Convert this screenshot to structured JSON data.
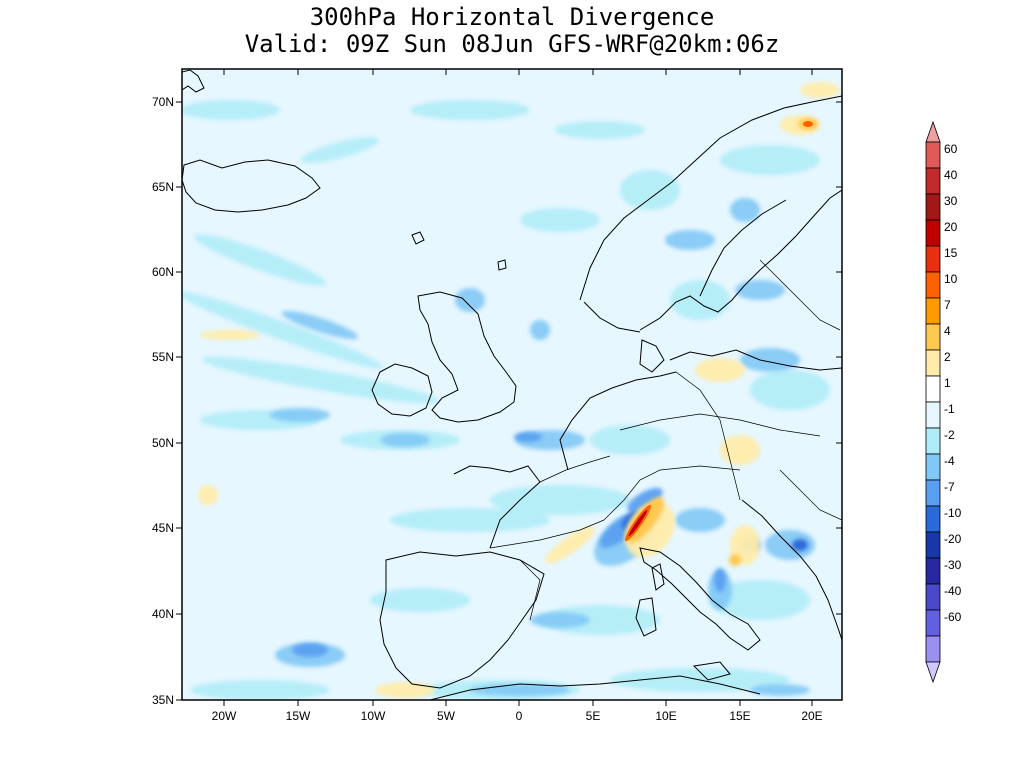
{
  "title": {
    "line1": "300hPa Horizontal Divergence",
    "line2": "Valid: 09Z Sun 08Jun GFS-WRF@20km:06z"
  },
  "map": {
    "lat_labels": [
      "70N",
      "65N",
      "60N",
      "55N",
      "50N",
      "45N",
      "40N",
      "35N"
    ],
    "lon_labels": [
      "20W",
      "15W",
      "10W",
      "5W",
      "0",
      "5E",
      "10E",
      "15E",
      "20E"
    ],
    "background_color": "#e6f7ff"
  },
  "colorbar": {
    "labels": [
      "60",
      "40",
      "30",
      "20",
      "15",
      "10",
      "7",
      "4",
      "2",
      "1",
      "-1",
      "-2",
      "-4",
      "-7",
      "-10",
      "-20",
      "-30",
      "-40",
      "-60"
    ],
    "colors": [
      "#f0a0a0",
      "#e05a5a",
      "#c02a2a",
      "#a01818",
      "#c00000",
      "#e83010",
      "#ff6000",
      "#ff9a00",
      "#ffc850",
      "#ffecaa",
      "#ffffff",
      "#e6f7ff",
      "#b0ecf8",
      "#80c8f5",
      "#5aa0f0",
      "#2a6ad8",
      "#1838a8",
      "#2828a0",
      "#4848c8",
      "#6060e0",
      "#9a90f0",
      "#d0c8ff"
    ]
  }
}
